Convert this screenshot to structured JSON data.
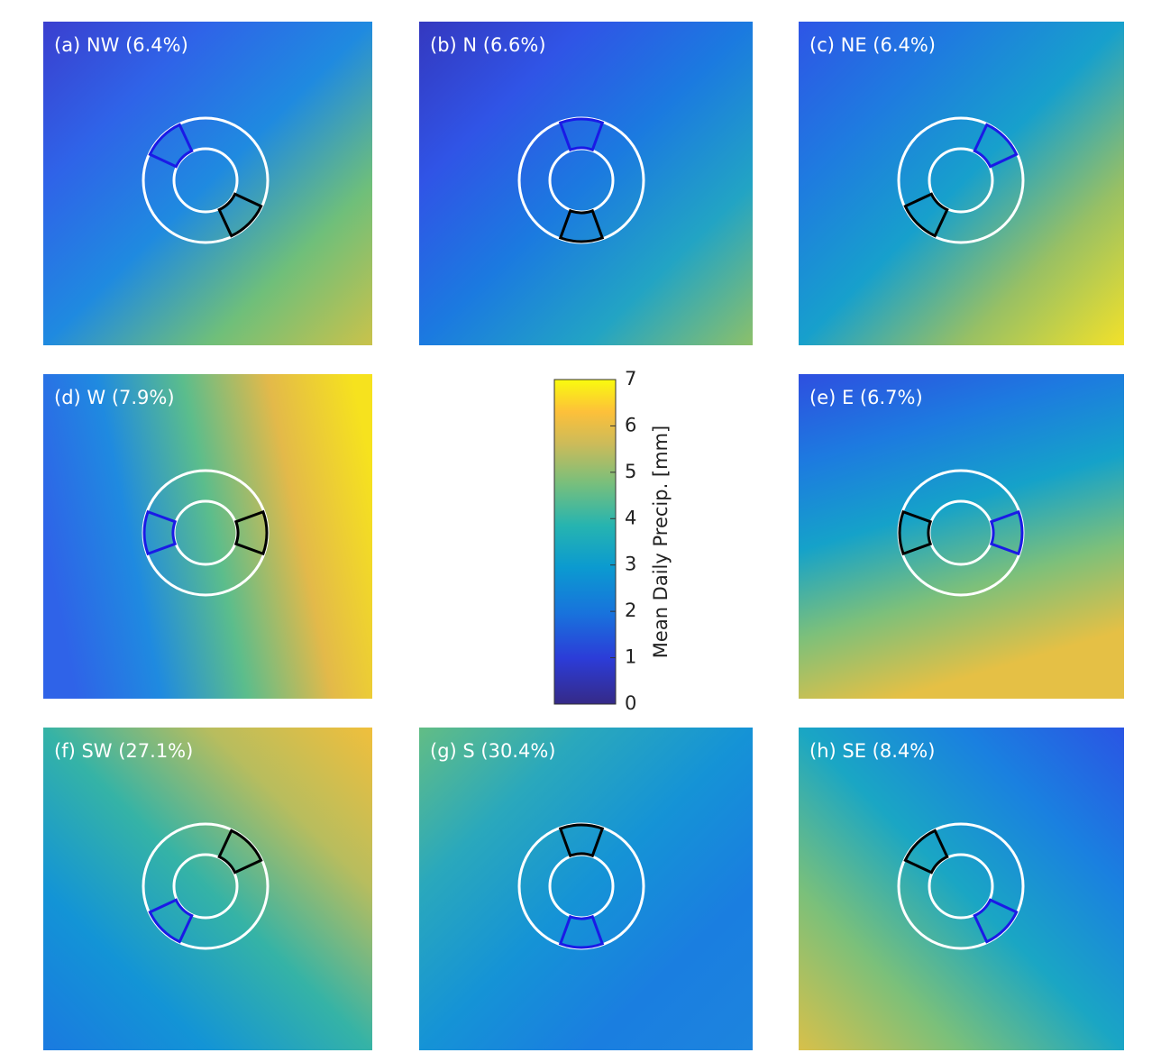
{
  "panels": [
    {
      "label": "(a) NW (6.4%)"
    },
    {
      "label": "(b) N (6.6%)"
    },
    {
      "label": "(c) NE (6.4%)"
    },
    {
      "label": "(d) W (7.9%)"
    },
    {
      "label": "(e) E (6.7%)"
    },
    {
      "label": "(f) SW (27.1%)"
    },
    {
      "label": "(g) S (30.4%)"
    },
    {
      "label": "(h) SE (8.4%)"
    }
  ],
  "colorbar": {
    "label": "Mean Daily Precip. [mm]",
    "lim": [
      0,
      7
    ],
    "ticks": [
      0,
      1,
      2,
      3,
      4,
      5,
      6,
      7
    ]
  }
}
